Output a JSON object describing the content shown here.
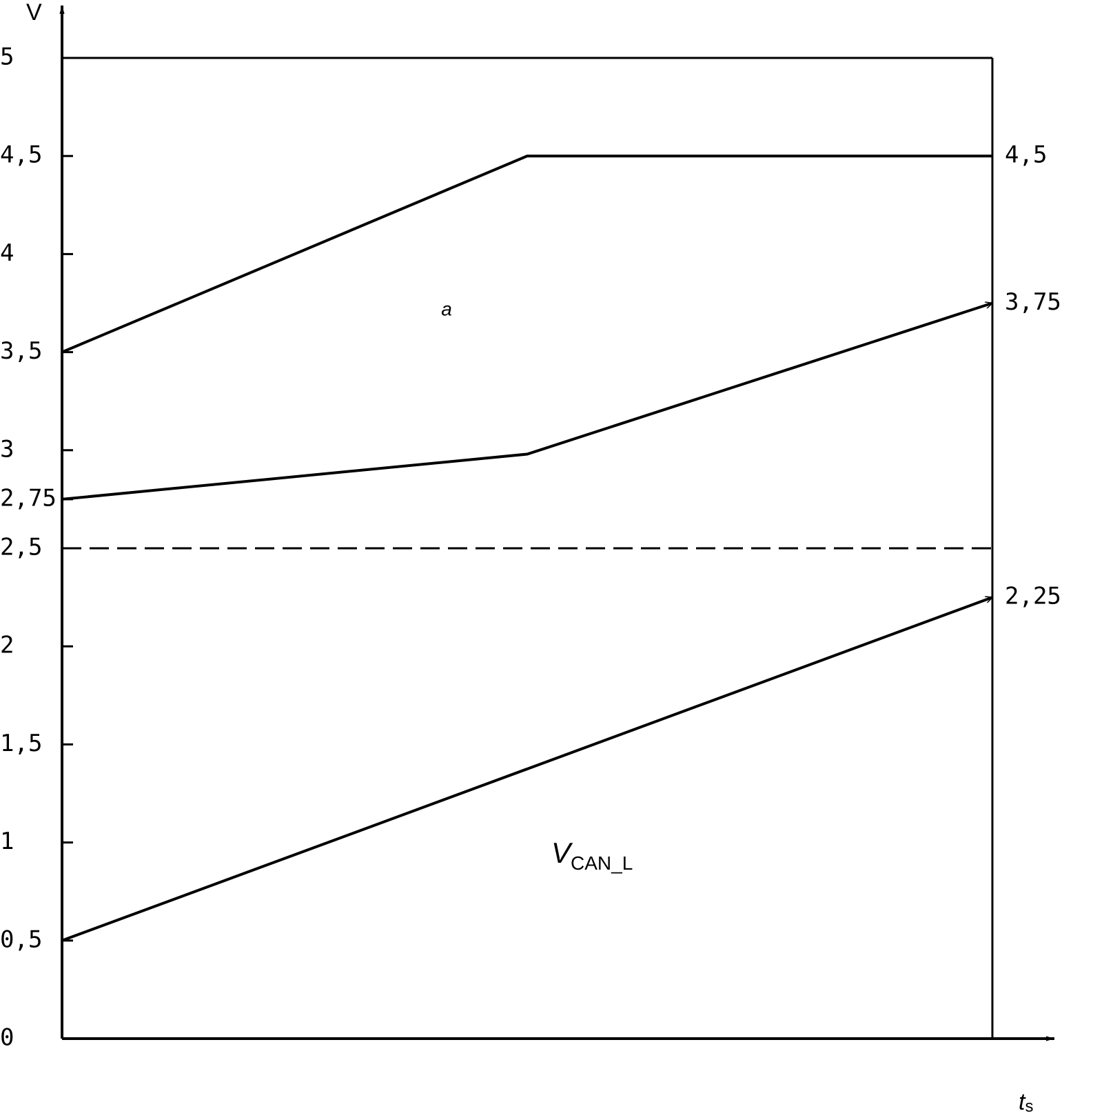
{
  "chart_data": {
    "type": "line",
    "ylabel": "V",
    "xlabel": {
      "symbol": "t",
      "subscript": "s"
    },
    "annotations": [
      {
        "text": "a"
      },
      {
        "symbol": "V",
        "subscript": "CAN_L"
      }
    ],
    "x": [
      0,
      0.5,
      1
    ],
    "xlim": [
      0,
      1
    ],
    "ylim": [
      0,
      5
    ],
    "yticks": [
      0,
      {
        "value": 0.5,
        "label": "0,5"
      },
      1,
      {
        "value": 1.5,
        "label": "1,5"
      },
      2,
      {
        "value": 2.5,
        "label": "2,5"
      },
      {
        "value": 2.75,
        "label": "2,75"
      },
      3,
      {
        "value": 3.5,
        "label": "3,5"
      },
      4,
      {
        "value": 4.5,
        "label": "4,5"
      },
      5
    ],
    "color": "#000000",
    "series": [
      {
        "values": [
          3.5,
          4.5,
          4.5
        ],
        "value_labels": [
          null,
          null,
          "4,5"
        ],
        "dashed": false,
        "arrow": false
      },
      {
        "values": [
          2.75,
          2.98,
          3.75
        ],
        "value_labels": [
          null,
          null,
          "3,75"
        ],
        "dashed": false,
        "arrow": true
      },
      {
        "values": [
          2.5,
          2.5,
          2.5
        ],
        "dashed": true,
        "arrow": false
      },
      {
        "values": [
          0.5,
          1.375,
          2.25
        ],
        "value_labels": [
          null,
          null,
          "2,25"
        ],
        "dashed": false,
        "arrow": true
      }
    ]
  }
}
